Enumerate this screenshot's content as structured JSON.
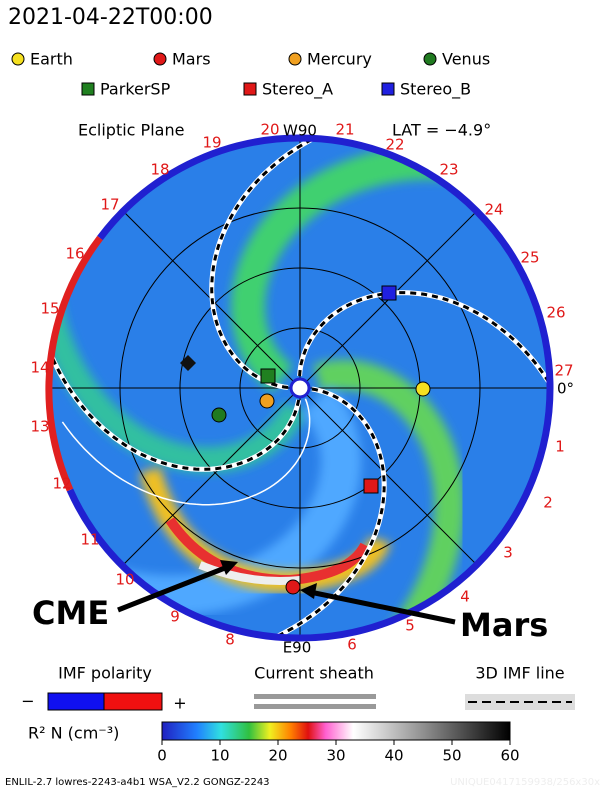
{
  "timestamp": "2021-04-22T00:00",
  "legend": {
    "bodies": [
      "Earth",
      "Mars",
      "Mercury",
      "Venus"
    ],
    "spacecraft": [
      "ParkerSP",
      "Stereo_A",
      "Stereo_B"
    ]
  },
  "plot": {
    "plane": "Ecliptic Plane",
    "latitude": "LAT = −4.9°",
    "top_label": "W90",
    "bottom_label": "E90",
    "right_label": "0°",
    "rim_labels": [
      "1",
      "2",
      "3",
      "4",
      "5",
      "6",
      "8",
      "9",
      "10",
      "11",
      "12",
      "13",
      "14",
      "15",
      "16",
      "17",
      "18",
      "19",
      "20",
      "21",
      "22",
      "23",
      "24",
      "25",
      "26",
      "27"
    ]
  },
  "annotations": [
    "CME",
    "Mars"
  ],
  "key": {
    "imf_polarity": "IMF polarity",
    "minus": "−",
    "plus": "+",
    "current_sheath": "Current sheath",
    "imf_line": "3D IMF line"
  },
  "colorbar": {
    "label": "R² N (cm⁻³)",
    "ticks": [
      0,
      10,
      20,
      30,
      40,
      50,
      60
    ]
  },
  "footer": "ENLIL-2.7 lowres-2243-a4b1 WSA_V2.2 GONGZ-2243",
  "watermark": "UNIQUE0417159938/256x30x"
}
